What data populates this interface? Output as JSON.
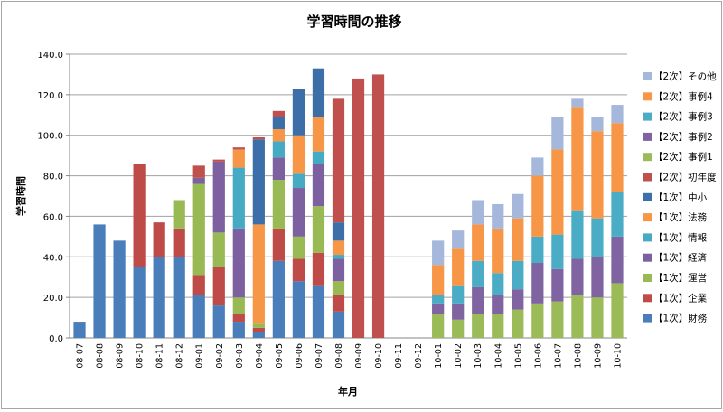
{
  "chart_data": {
    "type": "stacked-bar",
    "title": "学習時間の推移",
    "xlabel": "年月",
    "ylabel": "学習時間",
    "ylim": [
      0,
      140
    ],
    "ytick_step": 20,
    "ytick_labels": [
      "0.0",
      "20.0",
      "40.0",
      "60.0",
      "80.0",
      "100.0",
      "120.0",
      "140.0"
    ],
    "grid": true,
    "legend_position": "right",
    "categories": [
      "08-07",
      "08-08",
      "08-09",
      "08-10",
      "08-11",
      "08-12",
      "09-01",
      "09-02",
      "09-03",
      "09-04",
      "09-05",
      "09-06",
      "09-07",
      "09-08",
      "09-09",
      "09-10",
      "09-11",
      "09-12",
      "10-01",
      "10-02",
      "10-03",
      "10-04",
      "10-05",
      "10-06",
      "10-07",
      "10-08",
      "10-09",
      "10-10"
    ],
    "series": [
      {
        "name": "【1次】財務",
        "color": "#4a7ebb",
        "values": [
          8,
          56,
          48,
          35,
          40,
          40,
          21,
          16,
          8,
          3,
          38,
          28,
          26,
          13,
          0,
          0,
          0,
          0,
          0,
          0,
          0,
          0,
          0,
          0,
          0,
          0,
          0,
          0
        ]
      },
      {
        "name": "【1次】企業",
        "color": "#be4b48",
        "values": [
          0,
          0,
          0,
          51,
          17,
          14,
          10,
          19,
          4,
          2,
          16,
          11,
          16,
          8,
          0,
          0,
          0,
          0,
          0,
          0,
          0,
          0,
          0,
          0,
          0,
          0,
          0,
          0
        ]
      },
      {
        "name": "【1次】運営",
        "color": "#98b954",
        "values": [
          0,
          0,
          0,
          0,
          0,
          14,
          45,
          17,
          8,
          2,
          24,
          11,
          23,
          7,
          0,
          0,
          0,
          0,
          0,
          0,
          0,
          0,
          0,
          0,
          0,
          0,
          0,
          0
        ]
      },
      {
        "name": "【1次】経済",
        "color": "#7d60a0",
        "values": [
          0,
          0,
          0,
          0,
          0,
          0,
          3,
          35,
          34,
          0,
          11,
          24,
          21,
          11,
          0,
          0,
          0,
          0,
          0,
          0,
          0,
          0,
          0,
          0,
          0,
          0,
          0,
          0
        ]
      },
      {
        "name": "【1次】情報",
        "color": "#46aac5",
        "values": [
          0,
          0,
          0,
          0,
          0,
          0,
          0,
          0,
          30,
          0,
          8,
          7,
          6,
          2,
          0,
          0,
          0,
          0,
          0,
          0,
          0,
          0,
          0,
          0,
          0,
          0,
          0,
          0
        ]
      },
      {
        "name": "【1次】法務",
        "color": "#f79646",
        "values": [
          0,
          0,
          0,
          0,
          0,
          0,
          0,
          0,
          9,
          49,
          6,
          19,
          17,
          7,
          0,
          0,
          0,
          0,
          0,
          0,
          0,
          0,
          0,
          0,
          0,
          0,
          0,
          0
        ]
      },
      {
        "name": "【1次】中小",
        "color": "#3c6fa8",
        "values": [
          0,
          0,
          0,
          0,
          0,
          0,
          0,
          0,
          0,
          42,
          6,
          23,
          24,
          9,
          0,
          0,
          0,
          0,
          0,
          0,
          0,
          0,
          0,
          0,
          0,
          0,
          0,
          0
        ]
      },
      {
        "name": "【2次】初年度",
        "color": "#c0504d",
        "values": [
          0,
          0,
          0,
          0,
          0,
          0,
          6,
          1,
          1,
          1,
          3,
          0,
          0,
          61,
          128,
          130,
          0,
          0,
          0,
          0,
          0,
          0,
          0,
          0,
          0,
          0,
          0,
          0
        ]
      },
      {
        "name": "【2次】事例1",
        "color": "#9bbb59",
        "values": [
          0,
          0,
          0,
          0,
          0,
          0,
          0,
          0,
          0,
          0,
          0,
          0,
          0,
          0,
          0,
          0,
          0,
          0,
          12,
          9,
          12,
          12,
          14,
          17,
          18,
          21,
          20,
          27
        ]
      },
      {
        "name": "【2次】事例2",
        "color": "#8064a2",
        "values": [
          0,
          0,
          0,
          0,
          0,
          0,
          0,
          0,
          0,
          0,
          0,
          0,
          0,
          0,
          0,
          0,
          0,
          0,
          5,
          8,
          13,
          9,
          10,
          20,
          16,
          18,
          20,
          23
        ]
      },
      {
        "name": "【2次】事例3",
        "color": "#4bacc6",
        "values": [
          0,
          0,
          0,
          0,
          0,
          0,
          0,
          0,
          0,
          0,
          0,
          0,
          0,
          0,
          0,
          0,
          0,
          0,
          4,
          9,
          13,
          11,
          14,
          13,
          17,
          24,
          19,
          22
        ]
      },
      {
        "name": "【2次】事例4",
        "color": "#f79646",
        "values": [
          0,
          0,
          0,
          0,
          0,
          0,
          0,
          0,
          0,
          0,
          0,
          0,
          0,
          0,
          0,
          0,
          0,
          0,
          15,
          18,
          18,
          22,
          21,
          30,
          42,
          51,
          43,
          34
        ]
      },
      {
        "name": "【2次】その他",
        "color": "#a5b8db",
        "values": [
          0,
          0,
          0,
          0,
          0,
          0,
          0,
          0,
          0,
          0,
          0,
          0,
          0,
          0,
          0,
          0,
          0,
          0,
          12,
          9,
          12,
          12,
          12,
          9,
          16,
          4,
          7,
          9
        ]
      }
    ]
  }
}
